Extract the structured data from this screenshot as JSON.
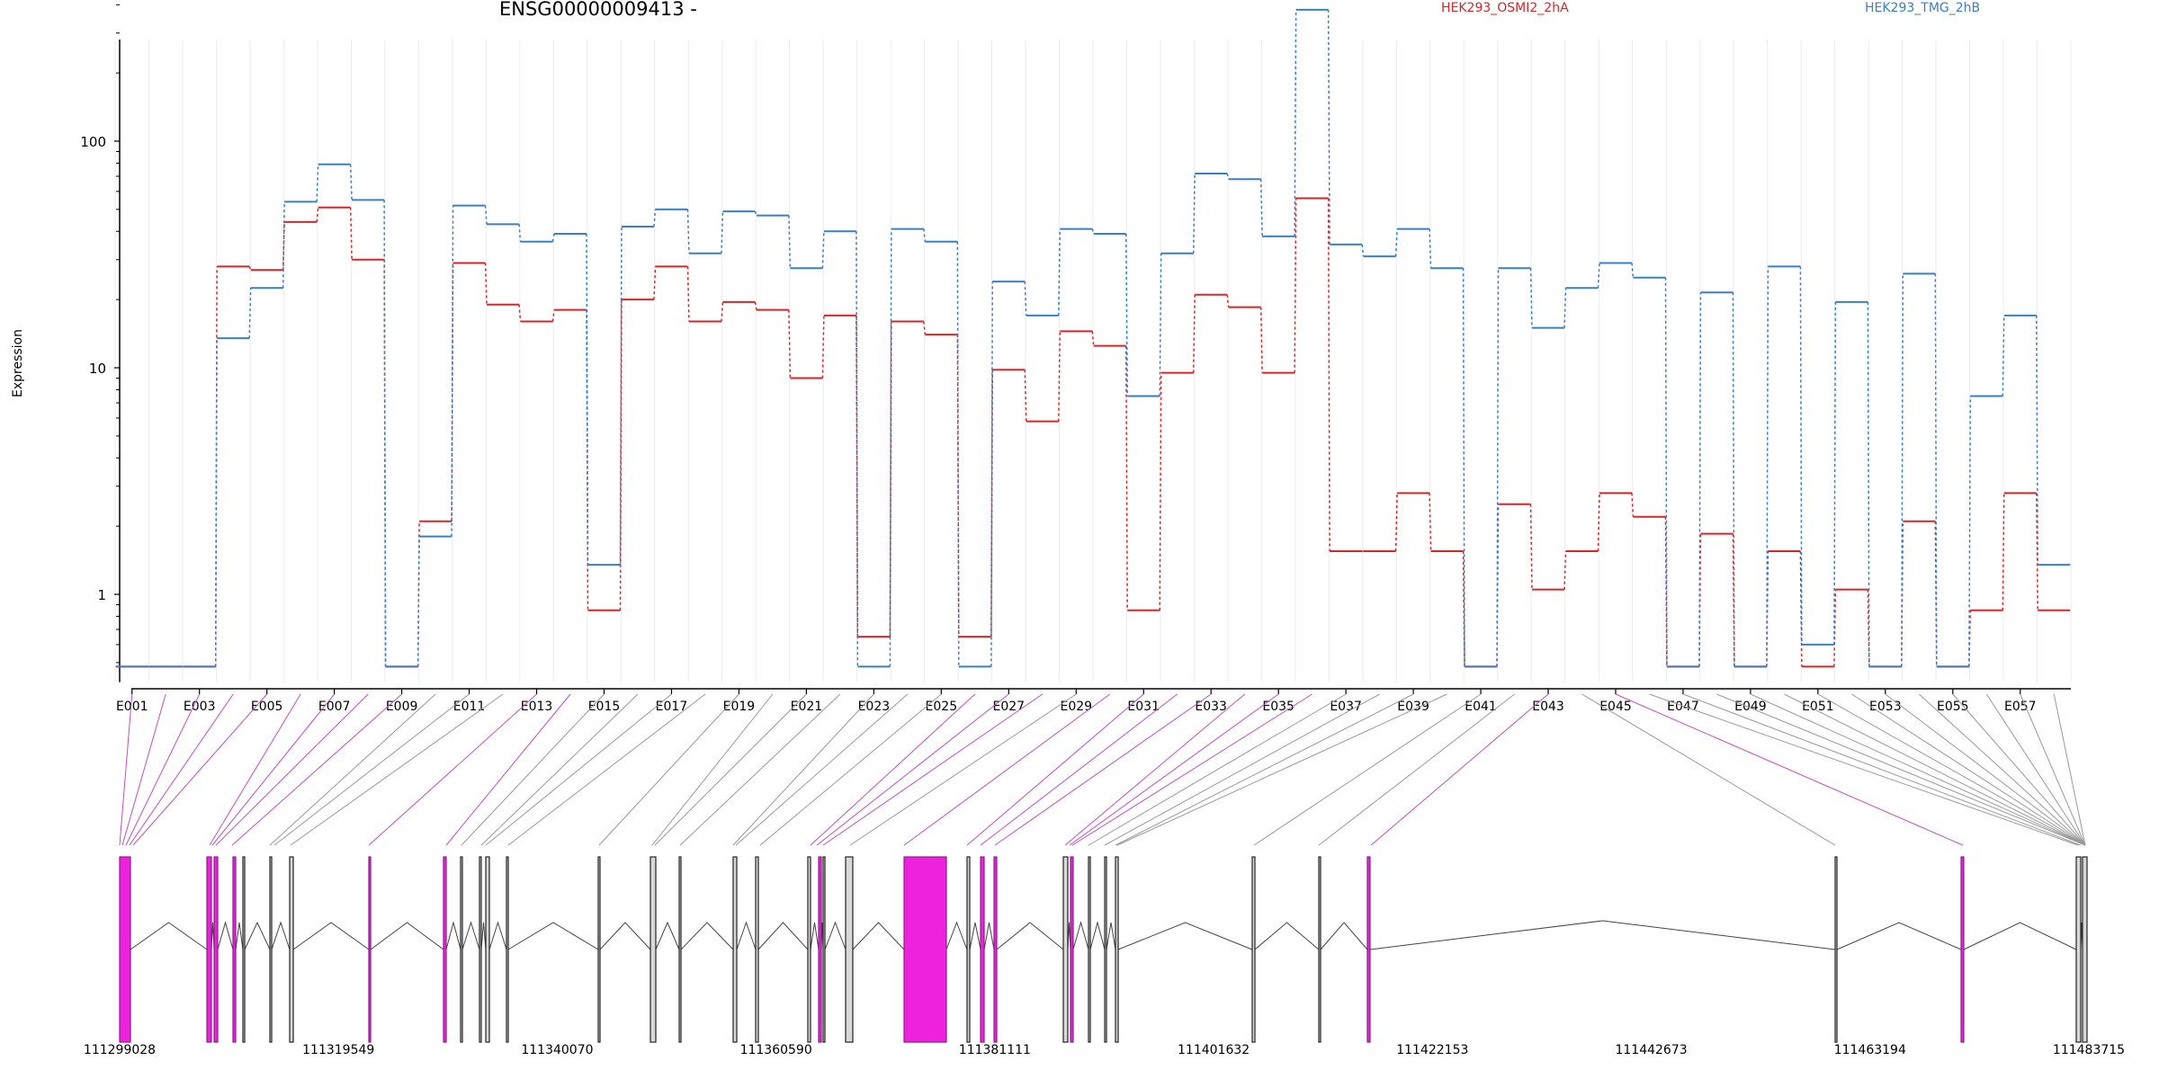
{
  "chart_data": {
    "type": "line",
    "title": "ENSG00000009413 -",
    "ylabel": "Expression",
    "yscale": "log",
    "ylim": [
      0.47,
      480
    ],
    "ytick_labels": [
      "1",
      "10",
      "100"
    ],
    "grid": "vertical, light",
    "legend_placement": "top",
    "x_categories": [
      "E001",
      "E002",
      "E003",
      "E004",
      "E005",
      "E006",
      "E007",
      "E008",
      "E009",
      "E010",
      "E011",
      "E012",
      "E013",
      "E014",
      "E015",
      "E016",
      "E017",
      "E018",
      "E019",
      "E020",
      "E021",
      "E022",
      "E023",
      "E024",
      "E025",
      "E026",
      "E027",
      "E028",
      "E029",
      "E030",
      "E031",
      "E032",
      "E033",
      "E034",
      "E035",
      "E036",
      "E037",
      "E038",
      "E039",
      "E040",
      "E041",
      "E042",
      "E043",
      "E044",
      "E045",
      "E046",
      "E047",
      "E048",
      "E049",
      "E050",
      "E051",
      "E052",
      "E053",
      "E054",
      "E055",
      "E056",
      "E057",
      "E058"
    ],
    "x_tick_labels": [
      "E001",
      "E003",
      "E005",
      "E007",
      "E009",
      "E011",
      "E013",
      "E015",
      "E017",
      "E019",
      "E021",
      "E023",
      "E025",
      "E027",
      "E029",
      "E031",
      "E033",
      "E035",
      "E037",
      "E039",
      "E041",
      "E043",
      "E045",
      "E047",
      "E049",
      "E051",
      "E053",
      "E055",
      "E057"
    ],
    "series": [
      {
        "name": "HEK293_OSMI2_2hA",
        "color": "#d62728",
        "values": [
          0.48,
          0.48,
          0.48,
          28,
          27,
          44,
          51,
          30,
          0.48,
          2.1,
          29,
          19,
          16,
          18,
          0.85,
          20,
          28,
          16,
          19.5,
          18,
          9,
          17,
          0.65,
          16,
          14,
          0.65,
          9.8,
          5.8,
          14.5,
          12.5,
          0.85,
          9.5,
          21,
          18.5,
          9.5,
          56,
          1.55,
          1.55,
          2.8,
          1.55,
          0.48,
          2.5,
          1.05,
          1.55,
          2.8,
          2.2,
          0.48,
          1.85,
          0.48,
          1.55,
          0.48,
          1.05,
          0.48,
          2.1,
          0.48,
          0.85,
          2.8,
          0.85
        ]
      },
      {
        "name": "HEK293_TMG_2hB",
        "color": "#3a7fc4",
        "values": [
          0.48,
          0.48,
          0.48,
          13.5,
          22.5,
          54,
          79,
          55,
          0.48,
          1.8,
          52,
          43,
          36,
          39,
          1.35,
          42,
          50,
          32,
          49,
          47,
          27.5,
          40,
          0.48,
          41,
          36,
          0.48,
          24,
          17,
          41,
          39,
          7.5,
          32,
          72,
          68,
          38,
          380,
          35,
          31,
          41,
          27.5,
          0.48,
          27.5,
          15,
          22.5,
          29,
          25,
          0.48,
          21.5,
          0.48,
          28,
          0.6,
          19.5,
          0.48,
          26,
          0.48,
          7.5,
          17,
          1.35
        ]
      }
    ],
    "genomic_axis": {
      "tick_labels": [
        "111299028",
        "111319549",
        "111340070",
        "111360590",
        "111381111",
        "111401632",
        "111422153",
        "111442673",
        "111463194",
        "111483715"
      ]
    }
  }
}
